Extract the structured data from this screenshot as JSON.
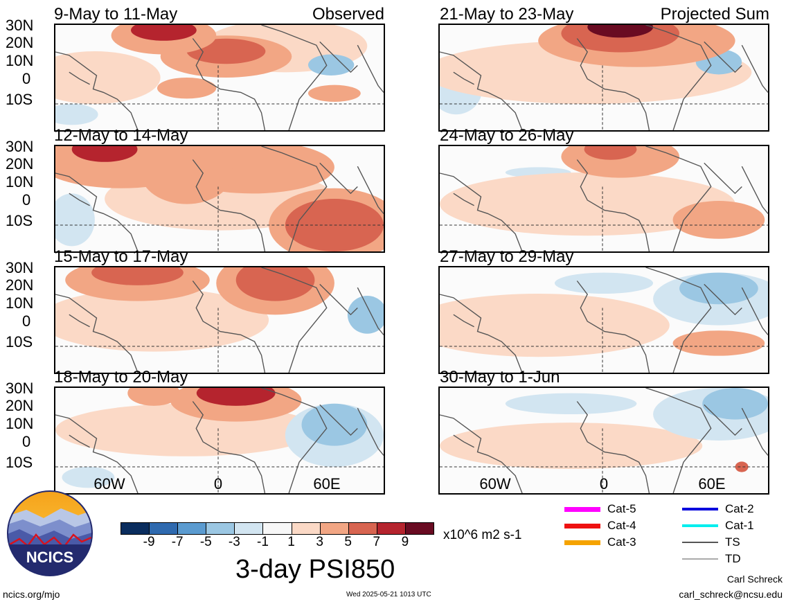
{
  "panels": [
    {
      "title": "9-May to 11-May",
      "tag": "Observed"
    },
    {
      "title": "12-May to 14-May",
      "tag": ""
    },
    {
      "title": "15-May to 17-May",
      "tag": ""
    },
    {
      "title": "18-May to 20-May",
      "tag": ""
    },
    {
      "title": "21-May to 23-May",
      "tag": "Projected Sum"
    },
    {
      "title": "24-May to 26-May",
      "tag": ""
    },
    {
      "title": "27-May to 29-May",
      "tag": ""
    },
    {
      "title": "30-May to 1-Jun",
      "tag": ""
    }
  ],
  "lat_labels": [
    "30N",
    "20N",
    "10N",
    "0",
    "10S"
  ],
  "lon_labels": [
    "60W",
    "0",
    "60E"
  ],
  "colorbar": {
    "colors": [
      "#0a2d5e",
      "#2f6aaf",
      "#5b9bd0",
      "#9bc7e3",
      "#d2e5f1",
      "#f7f7f7",
      "#fbd9c6",
      "#f2a684",
      "#d86551",
      "#b5242e",
      "#690b22"
    ],
    "ticks": [
      "-9",
      "-7",
      "-5",
      "-3",
      "-1",
      "1",
      "3",
      "5",
      "7",
      "9"
    ],
    "units": "x10^6 m2 s-1",
    "title": "3-day PSI850"
  },
  "legend": [
    {
      "label": "Cat-5",
      "color": "#ff00ff"
    },
    {
      "label": "Cat-4",
      "color": "#ee1111"
    },
    {
      "label": "Cat-3",
      "color": "#f5a300"
    },
    {
      "label": "Cat-2",
      "color": "#0000dd"
    },
    {
      "label": "Cat-1",
      "color": "#00eeee"
    },
    {
      "label": "TS",
      "color": "#555555"
    },
    {
      "label": "TD",
      "color": "#aaaaaa"
    }
  ],
  "logo": {
    "text": "NCICS"
  },
  "footer": {
    "left": "ncics.org/mjo",
    "center": "Wed 2025-05-21 1013 UTC",
    "author": "Carl Schreck",
    "email": "carl_schreck@ncsu.edu"
  }
}
